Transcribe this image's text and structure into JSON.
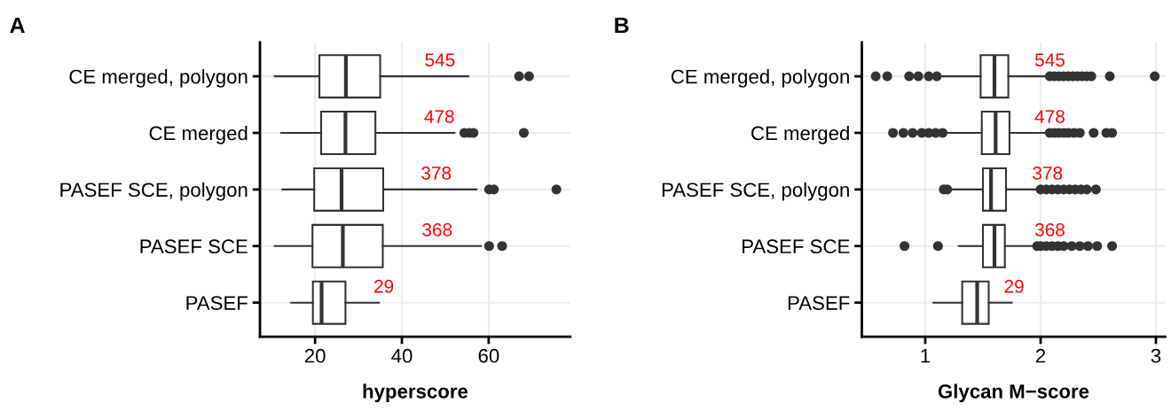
{
  "chart_data": [
    {
      "type": "box",
      "title": "A",
      "xlabel": "hyperscore",
      "orientation": "horizontal",
      "grid": true,
      "color": "#333333",
      "categories": [
        "CE merged, polygon",
        "CE merged",
        "PASEF SCE, polygon",
        "PASEF SCE",
        "PASEF"
      ],
      "boxes": [
        {
          "low": 10.7,
          "q1": 21.0,
          "median": 27.1,
          "q3": 35.0,
          "high": 55.3,
          "outliers": [
            67.0,
            69.3
          ]
        },
        {
          "low": 12.2,
          "q1": 21.4,
          "median": 27.0,
          "q3": 33.9,
          "high": 52.1,
          "outliers": [
            54.4,
            55.6,
            56.5,
            68.1
          ]
        },
        {
          "low": 12.5,
          "q1": 19.8,
          "median": 26.1,
          "q3": 35.7,
          "high": 57.2,
          "outliers": [
            60.1,
            61.2,
            75.6
          ]
        },
        {
          "low": 10.7,
          "q1": 19.4,
          "median": 26.4,
          "q3": 35.6,
          "high": 58.2,
          "outliers": [
            60.1,
            63.1
          ]
        },
        {
          "low": 14.5,
          "q1": 19.5,
          "median": 21.5,
          "q3": 27.0,
          "high": 34.7
        }
      ],
      "xlim": [
        7.3,
        78.8
      ],
      "xticks": [
        20,
        40,
        60
      ],
      "annotations": [
        "545",
        "478",
        "378",
        "368",
        "29"
      ]
    },
    {
      "type": "box",
      "title": "B",
      "xlabel": "Glycan M−score",
      "orientation": "horizontal",
      "grid": true,
      "color": "#333333",
      "categories": [
        "CE merged, polygon",
        "CE merged",
        "PASEF SCE, polygon",
        "PASEF SCE",
        "PASEF"
      ],
      "boxes": [
        {
          "low": 1.15,
          "q1": 1.48,
          "median": 1.6,
          "q3": 1.72,
          "high": 2.05,
          "outliers": [
            0.57,
            0.67,
            0.86,
            0.94,
            1.03,
            1.1,
            2.08,
            2.12,
            2.16,
            2.2,
            2.24,
            2.28,
            2.32,
            2.36,
            2.4,
            2.44,
            2.6,
            2.99
          ]
        },
        {
          "low": 1.19,
          "q1": 1.49,
          "median": 1.61,
          "q3": 1.73,
          "high": 2.03,
          "outliers": [
            0.72,
            0.81,
            0.89,
            0.97,
            1.03,
            1.09,
            1.15,
            2.08,
            2.12,
            2.16,
            2.2,
            2.24,
            2.29,
            2.34,
            2.46,
            2.57,
            2.62
          ]
        },
        {
          "low": 1.23,
          "q1": 1.5,
          "median": 1.57,
          "q3": 1.7,
          "high": 1.96,
          "outliers": [
            1.16,
            1.19,
            2.0,
            2.05,
            2.1,
            2.15,
            2.2,
            2.25,
            2.3,
            2.35,
            2.4,
            2.48
          ]
        },
        {
          "low": 1.29,
          "q1": 1.5,
          "median": 1.6,
          "q3": 1.69,
          "high": 1.93,
          "outliers": [
            0.82,
            1.11,
            1.97,
            2.0,
            2.05,
            2.1,
            2.15,
            2.2,
            2.27,
            2.34,
            2.41,
            2.49,
            2.62
          ]
        },
        {
          "low": 1.07,
          "q1": 1.32,
          "median": 1.45,
          "q3": 1.55,
          "high": 1.75
        }
      ],
      "xlim": [
        0.45,
        3.08
      ],
      "xticks": [
        1,
        2,
        3
      ],
      "annotations": [
        "545",
        "478",
        "378",
        "368",
        "29"
      ]
    }
  ]
}
